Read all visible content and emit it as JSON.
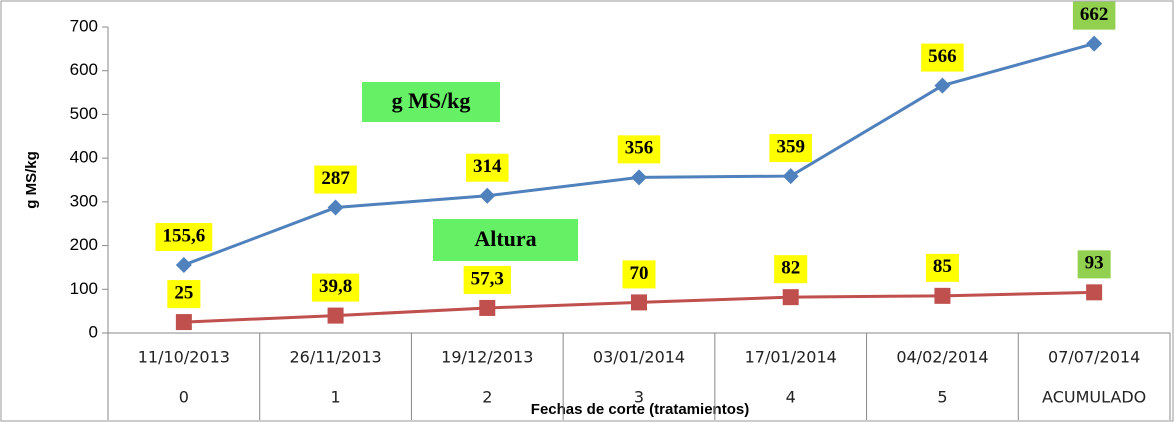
{
  "chart_data": {
    "type": "line",
    "y_axis_label": "g MS/kg",
    "x_axis_label": "Fechas de corte  (tratamientos)",
    "categories": [
      "11/10/2013",
      "26/11/2013",
      "19/12/2013",
      "03/01/2014",
      "17/01/2014",
      "04/02/2014",
      "07/07/2014"
    ],
    "subcategories": [
      "0",
      "1",
      "2",
      "3",
      "4",
      "5",
      "ACUMULADO"
    ],
    "series": [
      {
        "name": "g MS/kg",
        "color": "#4f81bd",
        "marker": "diamond",
        "annotation_color": "#66f066",
        "values": [
          155.6,
          287,
          314,
          356,
          359,
          566,
          662
        ],
        "value_labels": [
          "155,6",
          "287",
          "314",
          "356",
          "359",
          "566",
          "662"
        ],
        "value_label_colors": [
          "#ffff00",
          "#ffff00",
          "#ffff00",
          "#ffff00",
          "#ffff00",
          "#ffff00",
          "#92d050"
        ]
      },
      {
        "name": "Altura",
        "color": "#c0504d",
        "marker": "square",
        "annotation_color": "#66f066",
        "values": [
          25,
          39.8,
          57.3,
          70,
          82,
          85,
          93
        ],
        "value_labels": [
          "25",
          "39,8",
          "57,3",
          "70",
          "82",
          "85",
          "93"
        ],
        "value_label_colors": [
          "#ffff00",
          "#ffff00",
          "#ffff00",
          "#ffff00",
          "#ffff00",
          "#ffff00",
          "#92d050"
        ]
      }
    ],
    "ylim": [
      0,
      700
    ],
    "yticks": [
      0,
      100,
      200,
      300,
      400,
      500,
      600,
      700
    ],
    "grid": false
  }
}
